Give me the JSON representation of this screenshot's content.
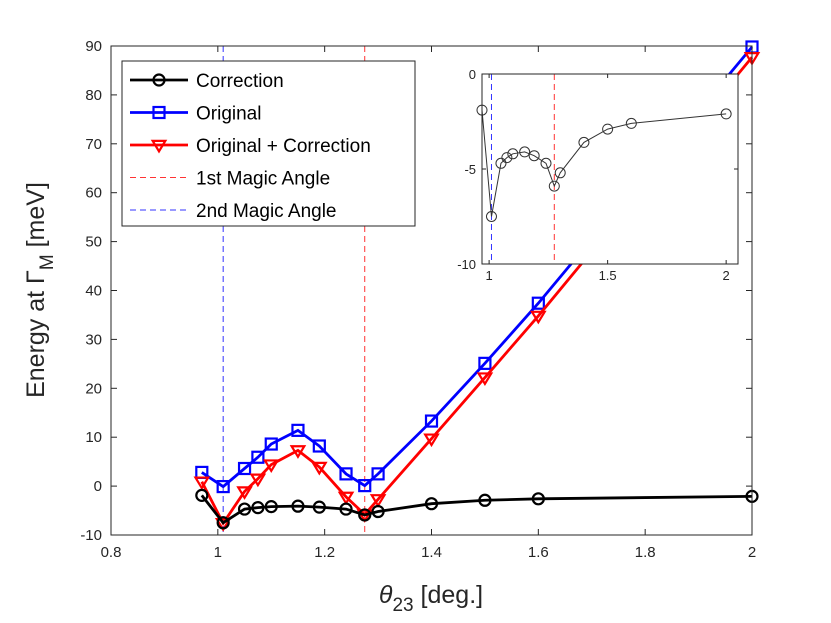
{
  "chart_data": {
    "type": "line",
    "xlabel": {
      "symbol": "θ",
      "subscript": "23",
      "unit": " [deg.]"
    },
    "ylabel": {
      "prefix": "Energy at ",
      "symbol": "Γ",
      "subscript": "M",
      "unit": " [meV]"
    },
    "xlim": [
      0.8,
      2.0
    ],
    "ylim": [
      -10,
      90
    ],
    "xticks": [
      0.8,
      1.0,
      1.2,
      1.4,
      1.6,
      1.8,
      2.0
    ],
    "xtick_labels": [
      "0.8",
      "1",
      "1.2",
      "1.4",
      "1.6",
      "1.8",
      "2"
    ],
    "yticks": [
      -10,
      0,
      10,
      20,
      30,
      40,
      50,
      60,
      70,
      80,
      90
    ],
    "ytick_labels": [
      "-10",
      "0",
      "10",
      "20",
      "30",
      "40",
      "50",
      "60",
      "70",
      "80",
      "90"
    ],
    "x": [
      0.97,
      1.01,
      1.05,
      1.075,
      1.1,
      1.15,
      1.19,
      1.24,
      1.275,
      1.3,
      1.4,
      1.5,
      1.6,
      2.0
    ],
    "series": [
      {
        "name": "Correction",
        "color": "#000000",
        "marker": "circle",
        "values": [
          -1.9,
          -7.5,
          -4.7,
          -4.4,
          -4.2,
          -4.1,
          -4.3,
          -4.7,
          -5.9,
          -5.2,
          -3.6,
          -2.9,
          -2.6,
          -2.1
        ]
      },
      {
        "name": "Original",
        "color": "#0000ff",
        "marker": "square",
        "values": [
          2.8,
          -0.1,
          3.6,
          5.9,
          8.6,
          11.4,
          8.2,
          2.5,
          0.1,
          2.5,
          13.3,
          25.1,
          37.4,
          89.8
        ]
      },
      {
        "name": "Original + Correction",
        "color": "#ff0000",
        "marker": "triangle-down",
        "values": [
          0.9,
          -7.6,
          -1.1,
          1.5,
          4.4,
          7.3,
          3.9,
          -2.2,
          -5.8,
          -2.7,
          9.7,
          22.2,
          34.8,
          87.7
        ]
      }
    ],
    "vlines": [
      {
        "name": "1st Magic Angle",
        "x": 1.275,
        "color": "#ff3333"
      },
      {
        "name": "2nd Magic Angle",
        "x": 1.01,
        "color": "#3333ff"
      }
    ],
    "legend_position": "top-left",
    "inset": {
      "position": "top-right",
      "xlim": [
        0.97,
        2.05
      ],
      "ylim": [
        -10,
        0
      ],
      "xticks": [
        1.0,
        1.5,
        2.0
      ],
      "xtick_labels": [
        "1",
        "1.5",
        "2"
      ],
      "yticks": [
        -10,
        -5,
        0
      ],
      "ytick_labels": [
        "-10",
        "-5",
        "0"
      ],
      "series_name": "Correction"
    }
  }
}
